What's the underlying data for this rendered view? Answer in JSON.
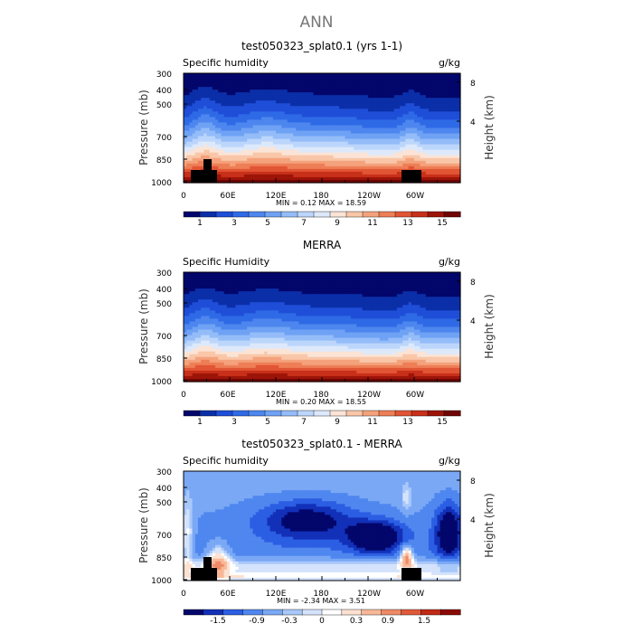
{
  "page_title": "ANN",
  "colors": {
    "abs_scale": [
      "#03066b",
      "#0b2fa8",
      "#1f4ed8",
      "#2f6ae6",
      "#4d86ee",
      "#6fa2f4",
      "#94bcf8",
      "#bcd6fb",
      "#dde9fb",
      "#fbe4d6",
      "#f9c6a8",
      "#f4a27c",
      "#ee7e56",
      "#e15535",
      "#c8301a",
      "#9d1408",
      "#6e0504"
    ],
    "diff_scale": [
      "#03066b",
      "#1230b8",
      "#2b5ee3",
      "#4f87ef",
      "#7aa8f5",
      "#a9c8fa",
      "#d4e3fb",
      "#ffffff",
      "#fde1d0",
      "#f8b898",
      "#ef8a66",
      "#e05a3a",
      "#c02a16",
      "#8a0a05"
    ],
    "topography": "#000000"
  },
  "chart_data": [
    {
      "type": "heatmap",
      "title": "test050323_splat0.1 (yrs 1-1)",
      "left_label": "Specific humidity",
      "right_label": "g/kg",
      "ylabel": "Pressure (mb)",
      "ylabel_right": "Height (km)",
      "x_ticks": [
        "0",
        "60E",
        "120E",
        "180",
        "120W",
        "60W"
      ],
      "y_ticks": [
        "300",
        "400",
        "500",
        "700",
        "850",
        "1000"
      ],
      "y2_ticks": [
        "8",
        "4"
      ],
      "min_text": "MIN =    0.12   MAX =   18.59",
      "colorbar_labels": [
        "1",
        "3",
        "5",
        "7",
        "9",
        "11",
        "13",
        "15"
      ],
      "xlim": [
        0,
        360
      ],
      "ylim": [
        1000,
        300
      ],
      "min": 0.12,
      "max": 18.59
    },
    {
      "type": "heatmap",
      "title": "MERRA",
      "left_label": "Specific Humidity",
      "right_label": "g/kg",
      "ylabel": "Pressure (mb)",
      "ylabel_right": "Height (km)",
      "x_ticks": [
        "0",
        "60E",
        "120E",
        "180",
        "120W",
        "60W"
      ],
      "y_ticks": [
        "300",
        "400",
        "500",
        "700",
        "850",
        "1000"
      ],
      "y2_ticks": [
        "8",
        "4"
      ],
      "min_text": "MIN =    0.20   MAX =   18.55",
      "colorbar_labels": [
        "1",
        "3",
        "5",
        "7",
        "9",
        "11",
        "13",
        "15"
      ],
      "xlim": [
        0,
        360
      ],
      "ylim": [
        1000,
        300
      ],
      "min": 0.2,
      "max": 18.55
    },
    {
      "type": "heatmap",
      "title": "test050323_splat0.1 - MERRA",
      "left_label": "Specific humidity",
      "right_label": "g/kg",
      "ylabel": "Pressure (mb)",
      "ylabel_right": "Height (km)",
      "x_ticks": [
        "0",
        "60E",
        "120E",
        "180",
        "120W",
        "60W"
      ],
      "y_ticks": [
        "300",
        "400",
        "500",
        "700",
        "850",
        "1000"
      ],
      "y2_ticks": [
        "8",
        "4"
      ],
      "min_text": "MIN =   -2.34   MAX =    3.51",
      "colorbar_labels": [
        "-1.5",
        "-0.9",
        "-0.3",
        "0",
        "0.3",
        "0.9",
        "1.5"
      ],
      "xlim": [
        0,
        360
      ],
      "ylim": [
        1000,
        300
      ],
      "min": -2.34,
      "max": 3.51
    }
  ]
}
